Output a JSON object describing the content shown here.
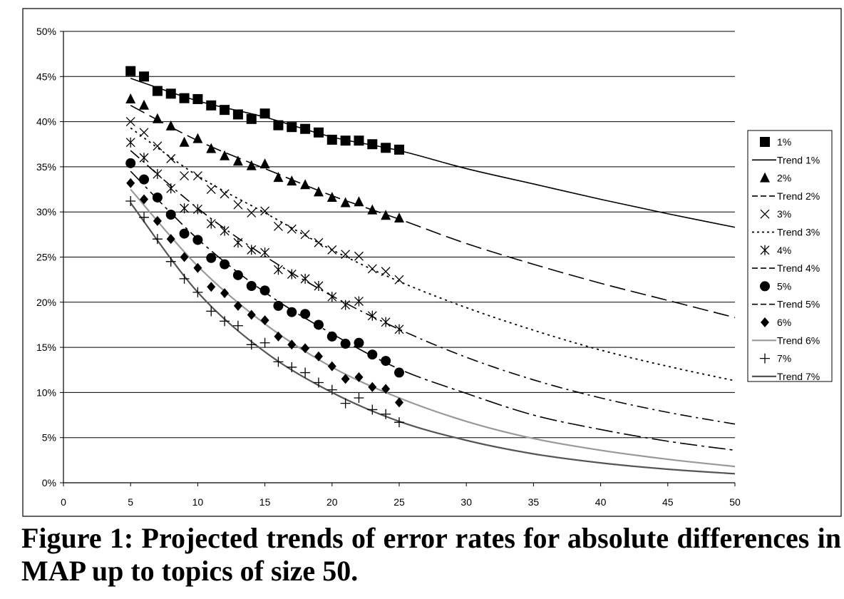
{
  "caption": "Figure 1: Projected trends of error rates for absolute differences in MAP up to topics of size 50.",
  "chart_data": {
    "type": "scatter",
    "title": "",
    "xlabel": "",
    "ylabel": "",
    "xlim": [
      0,
      50
    ],
    "ylim": [
      0,
      50
    ],
    "x_ticks": [
      0,
      5,
      10,
      15,
      20,
      25,
      30,
      35,
      40,
      45,
      50
    ],
    "y_ticks": [
      0,
      5,
      10,
      15,
      20,
      25,
      30,
      35,
      40,
      45,
      50
    ],
    "x_tick_labels": [
      "0",
      "5",
      "10",
      "15",
      "20",
      "25",
      "30",
      "35",
      "40",
      "45",
      "50"
    ],
    "y_tick_labels": [
      "0%",
      "5%",
      "10%",
      "15%",
      "20%",
      "25%",
      "30%",
      "35%",
      "40%",
      "45%",
      "50%"
    ],
    "y_unit": "%",
    "grid": "horizontal",
    "legend_position": "right",
    "series": [
      {
        "name": "1%",
        "marker": "square",
        "x": [
          5,
          6,
          7,
          8,
          9,
          10,
          11,
          12,
          13,
          14,
          15,
          16,
          17,
          18,
          19,
          20,
          21,
          22,
          23,
          24,
          25
        ],
        "values": [
          45.6,
          45.0,
          43.4,
          43.1,
          42.6,
          42.5,
          41.8,
          41.3,
          40.8,
          40.3,
          40.9,
          39.6,
          39.4,
          39.2,
          38.8,
          38.0,
          37.9,
          37.9,
          37.5,
          37.1,
          36.9
        ]
      },
      {
        "name": "2%",
        "marker": "triangle",
        "x": [
          5,
          6,
          7,
          8,
          9,
          10,
          11,
          12,
          13,
          14,
          15,
          16,
          17,
          18,
          19,
          20,
          21,
          22,
          23,
          24,
          25
        ],
        "values": [
          42.5,
          41.8,
          40.3,
          39.5,
          37.7,
          38.1,
          37.0,
          36.2,
          35.6,
          35.1,
          35.3,
          33.8,
          33.4,
          33.0,
          32.2,
          31.6,
          31.0,
          31.1,
          30.2,
          29.6,
          29.3
        ]
      },
      {
        "name": "3%",
        "marker": "x",
        "x": [
          5,
          6,
          7,
          8,
          9,
          10,
          11,
          12,
          13,
          14,
          15,
          16,
          17,
          18,
          19,
          20,
          21,
          22,
          23,
          24,
          25
        ],
        "values": [
          40.0,
          38.8,
          37.3,
          35.9,
          34.0,
          34.0,
          32.5,
          32.0,
          30.8,
          29.9,
          30.1,
          28.4,
          28.1,
          27.5,
          26.6,
          25.8,
          25.3,
          25.1,
          23.7,
          23.4,
          22.5
        ]
      },
      {
        "name": "4%",
        "marker": "asterisk",
        "x": [
          5,
          6,
          7,
          8,
          9,
          10,
          11,
          12,
          13,
          14,
          15,
          16,
          17,
          18,
          19,
          20,
          21,
          22,
          23,
          24,
          25
        ],
        "values": [
          37.7,
          36.0,
          34.2,
          32.6,
          30.4,
          30.3,
          28.7,
          27.9,
          26.6,
          25.8,
          25.5,
          23.6,
          23.1,
          22.6,
          21.8,
          20.6,
          19.7,
          20.1,
          18.5,
          17.8,
          17.0
        ]
      },
      {
        "name": "5%",
        "marker": "circle",
        "x": [
          5,
          6,
          7,
          8,
          9,
          10,
          11,
          12,
          13,
          14,
          15,
          16,
          17,
          18,
          19,
          20,
          21,
          22,
          23,
          24,
          25
        ],
        "values": [
          35.4,
          33.6,
          31.6,
          29.7,
          27.6,
          26.9,
          24.9,
          24.2,
          23.0,
          21.8,
          21.3,
          19.6,
          18.9,
          18.7,
          17.5,
          16.2,
          15.4,
          15.5,
          14.2,
          13.5,
          12.2
        ]
      },
      {
        "name": "6%",
        "marker": "diamond",
        "x": [
          5,
          6,
          7,
          8,
          9,
          10,
          11,
          12,
          13,
          14,
          15,
          16,
          17,
          18,
          19,
          20,
          21,
          22,
          23,
          24,
          25
        ],
        "values": [
          33.2,
          31.4,
          29.0,
          27.0,
          25.0,
          23.8,
          21.7,
          21.0,
          19.6,
          18.6,
          18.0,
          16.2,
          15.3,
          14.9,
          14.0,
          12.9,
          11.5,
          11.7,
          10.6,
          10.4,
          8.9
        ]
      },
      {
        "name": "7%",
        "marker": "plus",
        "x": [
          5,
          6,
          7,
          8,
          9,
          10,
          11,
          12,
          13,
          14,
          15,
          16,
          17,
          18,
          19,
          20,
          21,
          22,
          23,
          24,
          25
        ],
        "values": [
          31.2,
          29.4,
          27.0,
          24.5,
          22.6,
          21.1,
          19.0,
          17.9,
          17.4,
          15.3,
          15.5,
          13.4,
          12.8,
          12.2,
          11.1,
          10.3,
          8.8,
          9.4,
          8.1,
          7.6,
          6.7
        ]
      }
    ],
    "trends": [
      {
        "name": "Trend 1%",
        "dash": "solid",
        "color": "#000000",
        "x": [
          5,
          10,
          15,
          20,
          25,
          30,
          35,
          40,
          45,
          50
        ],
        "values": [
          44.8,
          42.3,
          40.5,
          38.3,
          36.8,
          34.8,
          33.1,
          31.4,
          29.8,
          28.3
        ]
      },
      {
        "name": "Trend 2%",
        "dash": "long-dash",
        "color": "#000000",
        "x": [
          5,
          10,
          15,
          20,
          25,
          30,
          35,
          40,
          45,
          50
        ],
        "values": [
          41.8,
          37.9,
          34.8,
          31.8,
          29.2,
          26.5,
          24.2,
          22.1,
          20.2,
          18.3
        ]
      },
      {
        "name": "Trend 3%",
        "dash": "dotted",
        "color": "#000000",
        "x": [
          5,
          10,
          15,
          20,
          25,
          30,
          35,
          40,
          45,
          50
        ],
        "values": [
          39.3,
          34.0,
          29.9,
          25.8,
          22.3,
          19.4,
          16.9,
          14.7,
          12.9,
          11.3
        ]
      },
      {
        "name": "Trend 4%",
        "dash": "dash-dot",
        "color": "#000000",
        "x": [
          5,
          10,
          15,
          20,
          25,
          30,
          35,
          40,
          45,
          50
        ],
        "values": [
          36.8,
          30.4,
          25.1,
          20.7,
          17.0,
          13.9,
          11.4,
          9.4,
          7.8,
          6.5
        ]
      },
      {
        "name": "Trend 5%",
        "dash": "long-dash-dot",
        "color": "#000000",
        "x": [
          5,
          10,
          15,
          20,
          25,
          30,
          35,
          40,
          45,
          50
        ],
        "values": [
          34.5,
          27.0,
          21.1,
          16.5,
          12.6,
          9.9,
          7.5,
          5.9,
          4.6,
          3.6
        ]
      },
      {
        "name": "Trend 6%",
        "dash": "solid-gray",
        "color": "#999999",
        "x": [
          5,
          10,
          15,
          20,
          25,
          30,
          35,
          40,
          45,
          50
        ],
        "values": [
          32.5,
          24.0,
          17.6,
          12.8,
          9.4,
          6.8,
          4.9,
          3.6,
          2.6,
          1.8
        ]
      },
      {
        "name": "Trend 7%",
        "dash": "solid-dark",
        "color": "#555555",
        "x": [
          5,
          10,
          15,
          20,
          25,
          30,
          35,
          40,
          45,
          50
        ],
        "values": [
          31.0,
          21.1,
          14.5,
          10.0,
          6.8,
          4.7,
          3.2,
          2.2,
          1.5,
          1.0
        ]
      }
    ],
    "legend_order": [
      "1%",
      "Trend 1%",
      "2%",
      "Trend 2%",
      "3%",
      "Trend 3%",
      "4%",
      "Trend 4%",
      "5%",
      "Trend 5%",
      "6%",
      "Trend 6%",
      "7%",
      "Trend 7%"
    ]
  }
}
